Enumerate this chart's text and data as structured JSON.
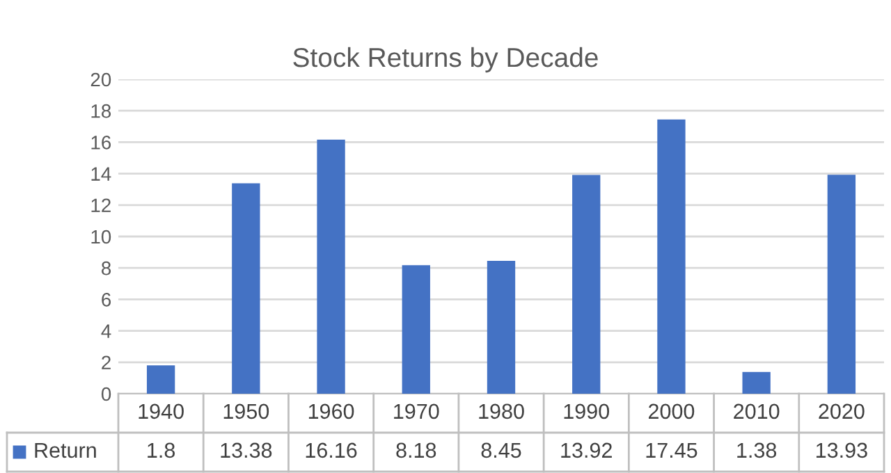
{
  "chart_data": {
    "type": "bar",
    "title": "Stock Returns by Decade",
    "categories": [
      "1940",
      "1950",
      "1960",
      "1970",
      "1980",
      "1990",
      "2000",
      "2010",
      "2020"
    ],
    "series": [
      {
        "name": "Return",
        "color": "#4472c4",
        "values": [
          1.8,
          13.38,
          16.16,
          8.18,
          8.45,
          13.92,
          17.45,
          1.38,
          13.93
        ]
      }
    ],
    "ylim": [
      0,
      20
    ],
    "yticks": [
      0,
      2,
      4,
      6,
      8,
      10,
      12,
      14,
      16,
      18,
      20
    ],
    "grid": "y",
    "data_labels": true,
    "legend": "bottom"
  }
}
